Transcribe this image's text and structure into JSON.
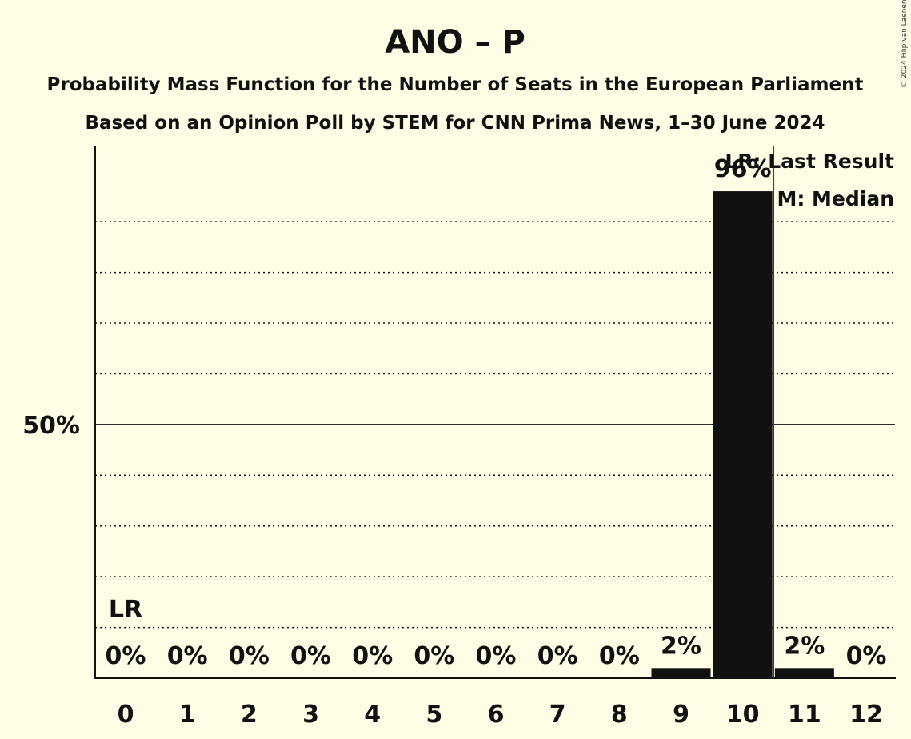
{
  "title": "ANO – P",
  "subtitle1": "Probability Mass Function for the Number of Seats in the European Parliament",
  "subtitle2": "Based on an Opinion Poll by STEM for CNN Prima News, 1–30 June 2024",
  "copyright": "© 2024 Filip van Laenen",
  "legend": {
    "lr": "LR: Last Result",
    "median": "M: Median"
  },
  "colors": {
    "background": "#FFFDE6",
    "bar": "#111111",
    "last_result_line": "#CC0000"
  },
  "chart_data": {
    "type": "bar",
    "categories": [
      "0",
      "1",
      "2",
      "3",
      "4",
      "5",
      "6",
      "7",
      "8",
      "9",
      "10",
      "11",
      "12"
    ],
    "values": [
      0,
      0,
      0,
      0,
      0,
      0,
      0,
      0,
      0,
      2,
      96,
      2,
      0
    ],
    "value_labels": [
      "0%",
      "0%",
      "0%",
      "0%",
      "0%",
      "0%",
      "0%",
      "0%",
      "0%",
      "2%",
      "96%",
      "2%",
      "0%"
    ],
    "ylim": [
      0,
      105
    ],
    "yticks": [
      {
        "value": 50,
        "label": "50%"
      }
    ],
    "gridlines": [
      10,
      20,
      30,
      40,
      60,
      70,
      80,
      90
    ],
    "grid": "dotted",
    "last_result": {
      "seats": 0,
      "label": "LR",
      "line_between": [
        10,
        11
      ]
    },
    "median": {
      "seats": 10,
      "label": "M"
    },
    "legend_position": "top-right"
  }
}
